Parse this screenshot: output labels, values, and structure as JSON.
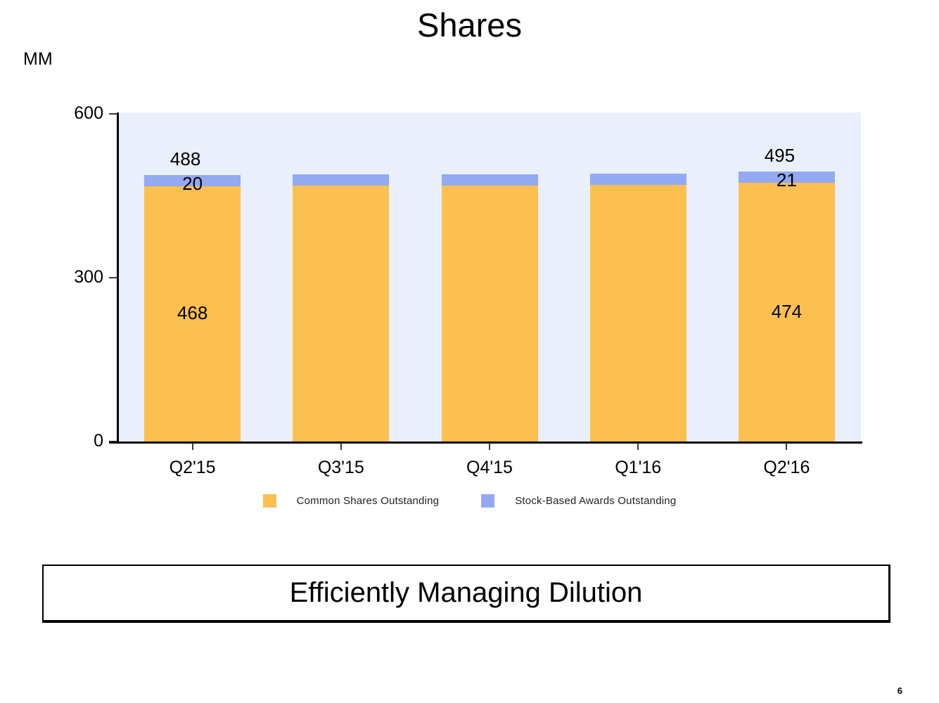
{
  "title": "Shares",
  "units_label": "MM",
  "footer": {
    "banner": "Efficiently Managing Dilution",
    "page_number": "6"
  },
  "colors": {
    "common": "#FBC04F",
    "awards": "#93A9F2",
    "plot_bg": "#E9F0FB",
    "axis": "#000000"
  },
  "chart_data": {
    "type": "bar",
    "stacked": true,
    "title": "Shares",
    "units": "MM",
    "categories": [
      "Q2'15",
      "Q3'15",
      "Q4'15",
      "Q1'16",
      "Q2'16"
    ],
    "series": [
      {
        "name": "Common Shares Outstanding",
        "color_key": "common",
        "values": [
          468,
          469,
          469,
          470,
          474
        ]
      },
      {
        "name": "Stock-Based Awards Outstanding",
        "color_key": "awards",
        "values": [
          20,
          20,
          20,
          20,
          21
        ]
      }
    ],
    "totals": [
      488,
      489,
      489,
      490,
      495
    ],
    "data_labels": [
      {
        "index": 0,
        "total": "488",
        "common": "468",
        "awards": "20"
      },
      {
        "index": 4,
        "total": "495",
        "common": "474",
        "awards": "21"
      }
    ],
    "ylim": [
      0,
      600
    ],
    "yticks": [
      0,
      300,
      600
    ],
    "grid": false,
    "legend_position": "bottom"
  }
}
